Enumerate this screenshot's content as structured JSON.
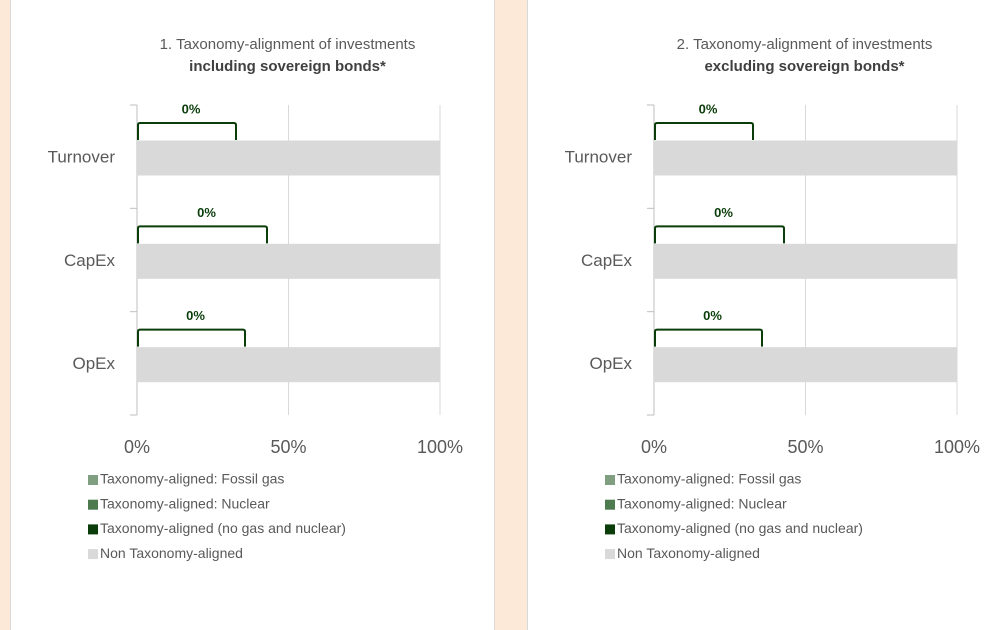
{
  "chart_data": [
    {
      "type": "bar",
      "orientation": "horizontal",
      "stacked": true,
      "title": "1. Taxonomy-alignment of investments",
      "subtitle": "including sovereign bonds*",
      "categories": [
        "Turnover",
        "CapEx",
        "OpEx"
      ],
      "series": [
        {
          "name": "Taxonomy-aligned: Fossil gas",
          "color": "#7f9f80",
          "values": [
            0,
            0,
            0
          ]
        },
        {
          "name": "Taxonomy-aligned: Nuclear",
          "color": "#4e7a50",
          "values": [
            0,
            0,
            0
          ]
        },
        {
          "name": "Taxonomy-aligned (no gas and nuclear)",
          "color": "#0b3d0b",
          "values": [
            0,
            0,
            0
          ],
          "value_labels": [
            "0%",
            "0%",
            "0%"
          ]
        },
        {
          "name": "Non Taxonomy-aligned",
          "color": "#d9d9d9",
          "values": [
            100,
            100,
            100
          ]
        }
      ],
      "xlim": [
        0,
        100
      ],
      "xticks": [
        {
          "value": 0,
          "label": "0%"
        },
        {
          "value": 50,
          "label": "50%"
        },
        {
          "value": 100,
          "label": "100%"
        }
      ],
      "grid": true,
      "legend": "bottom"
    },
    {
      "type": "bar",
      "orientation": "horizontal",
      "stacked": true,
      "title": "2. Taxonomy-alignment of investments",
      "subtitle": "excluding sovereign bonds*",
      "categories": [
        "Turnover",
        "CapEx",
        "OpEx"
      ],
      "series": [
        {
          "name": "Taxonomy-aligned: Fossil gas",
          "color": "#7f9f80",
          "values": [
            0,
            0,
            0
          ]
        },
        {
          "name": "Taxonomy-aligned: Nuclear",
          "color": "#4e7a50",
          "values": [
            0,
            0,
            0
          ]
        },
        {
          "name": "Taxonomy-aligned (no gas and nuclear)",
          "color": "#0b3d0b",
          "values": [
            0,
            0,
            0
          ],
          "value_labels": [
            "0%",
            "0%",
            "0%"
          ]
        },
        {
          "name": "Non Taxonomy-aligned",
          "color": "#d9d9d9",
          "values": [
            100,
            100,
            100
          ]
        }
      ],
      "xlim": [
        0,
        100
      ],
      "xticks": [
        {
          "value": 0,
          "label": "0%"
        },
        {
          "value": 50,
          "label": "50%"
        },
        {
          "value": 100,
          "label": "100%"
        }
      ],
      "grid": true,
      "legend": "bottom"
    }
  ]
}
